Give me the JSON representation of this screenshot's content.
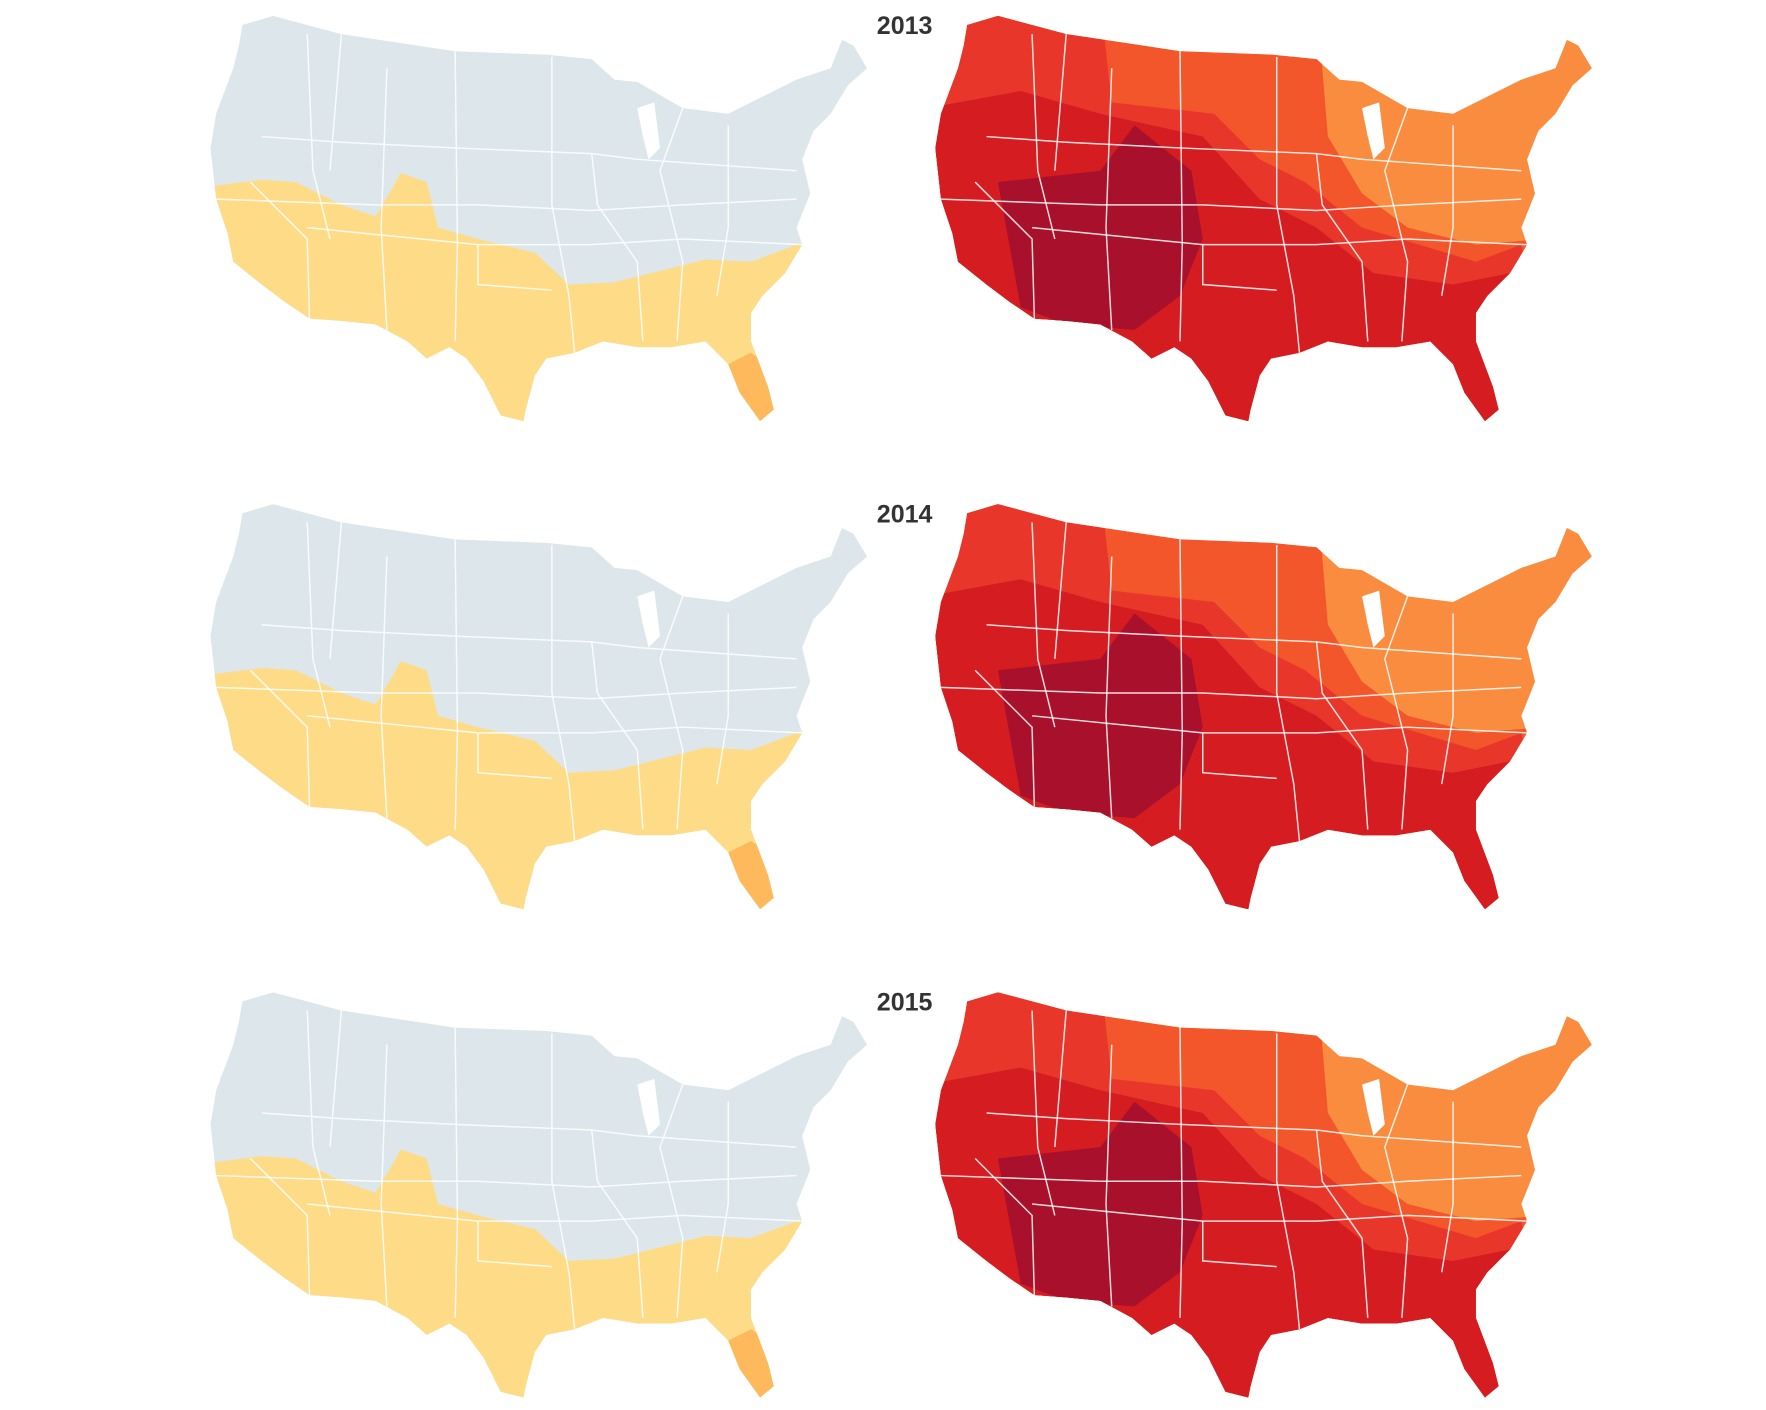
{
  "panels": [
    {
      "year": "2013"
    },
    {
      "year": "2014"
    },
    {
      "year": "2015"
    }
  ]
}
